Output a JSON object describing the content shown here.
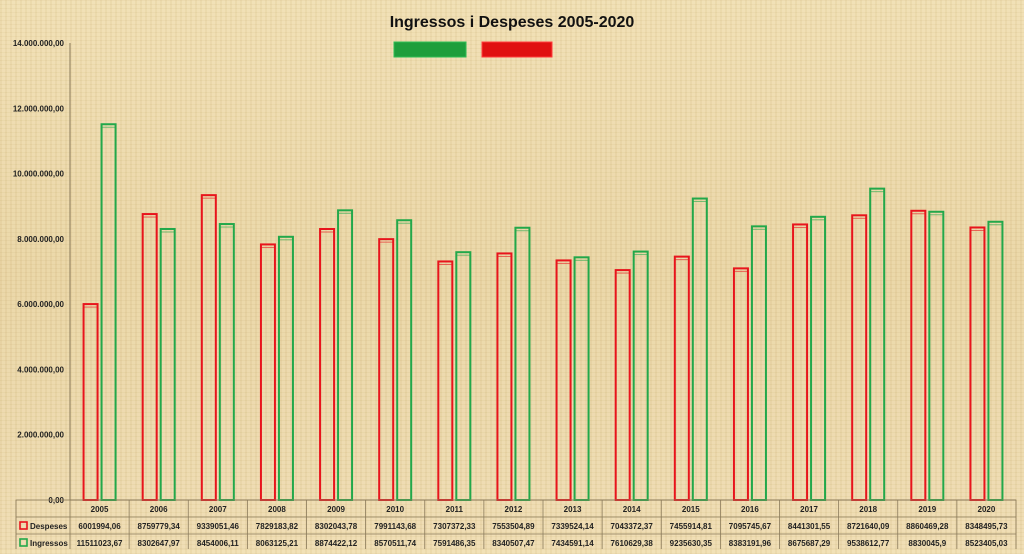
{
  "chart_data": {
    "type": "bar",
    "title": "Ingressos i Despeses 2005-2020",
    "categories": [
      "2005",
      "2006",
      "2007",
      "2008",
      "2009",
      "2010",
      "2011",
      "2012",
      "2013",
      "2014",
      "2015",
      "2016",
      "2017",
      "2018",
      "2019",
      "2020"
    ],
    "series": [
      {
        "name": "Despeses",
        "color": "#e8141c",
        "values": [
          6001994.06,
          8759779.34,
          9339051.46,
          7829183.82,
          8302043.78,
          7991143.68,
          7307372.33,
          7553504.89,
          7339524.14,
          7043372.37,
          7455914.81,
          7095745.67,
          8441301.55,
          8721640.09,
          8860469.28,
          8348495.73
        ],
        "labels": [
          "6001994,06",
          "8759779,34",
          "9339051,46",
          "7829183,82",
          "8302043,78",
          "7991143,68",
          "7307372,33",
          "7553504,89",
          "7339524,14",
          "7043372,37",
          "7455914,81",
          "7095745,67",
          "8441301,55",
          "8721640,09",
          "8860469,28",
          "8348495,73"
        ]
      },
      {
        "name": "Ingressos",
        "color": "#22a84a",
        "values": [
          11511023.67,
          8302647.97,
          8454006.11,
          8063125.21,
          8874422.12,
          8570511.74,
          7591486.35,
          8340507.47,
          7434591.14,
          7610629.38,
          9235630.35,
          8383191.96,
          8675687.29,
          9538612.77,
          8830045.9,
          8523405.03
        ],
        "labels": [
          "11511023,67",
          "8302647,97",
          "8454006,11",
          "8063125,21",
          "8874422,12",
          "8570511,74",
          "7591486,35",
          "8340507,47",
          "7434591,14",
          "7610629,38",
          "9235630,35",
          "8383191,96",
          "8675687,29",
          "9538612,77",
          "8830045,9",
          "8523405,03"
        ]
      }
    ],
    "ylim": [
      0,
      14000000
    ],
    "yticks": [
      0,
      2000000,
      4000000,
      6000000,
      8000000,
      10000000,
      12000000,
      14000000
    ],
    "ytick_labels": [
      "0,00",
      "2.000.000,00",
      "4.000.000,00",
      "6.000.000,00",
      "8.000.000,00",
      "10.000.000,00",
      "12.000.000,00",
      "14.000.000,00"
    ],
    "grid": false,
    "legend": "top-center",
    "data_table": true
  }
}
